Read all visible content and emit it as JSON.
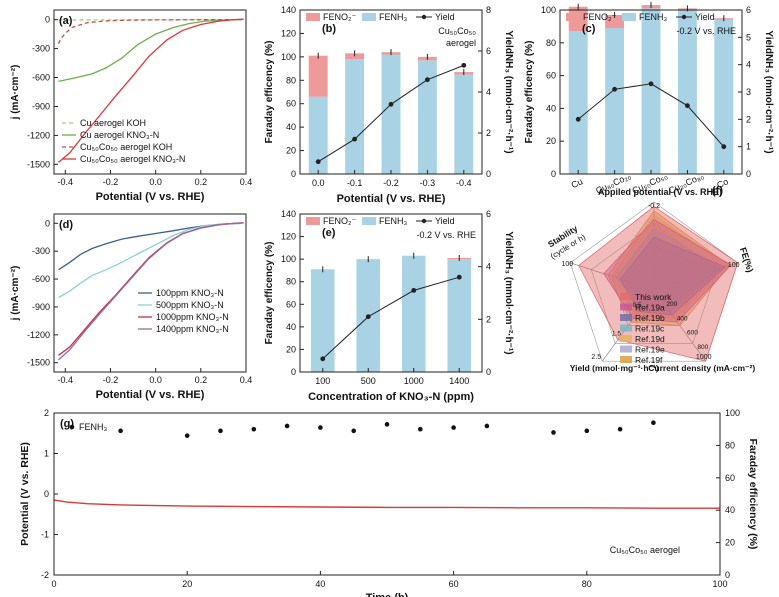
{
  "chart_data": [
    {
      "panel": "(a)",
      "type": "line",
      "xlabel": "Potential (V vs. RHE)",
      "ylabel": "j (mA·cm⁻²)",
      "xlim": [
        -0.45,
        0.4
      ],
      "ylim": [
        -1600,
        100
      ],
      "xticks": [
        -0.4,
        -0.2,
        0.0,
        0.2,
        0.4
      ],
      "xtick_labels": [
        "-0.4",
        "-0.2",
        "0.0",
        "0.2",
        "0.4"
      ],
      "yticks": [
        0,
        -300,
        -600,
        -900,
        -1200,
        -1500
      ],
      "ytick_labels": [
        "0",
        "-300",
        "-600",
        "-900",
        "-1200",
        "-1500"
      ],
      "series": [
        {
          "name": "Cu aerogel KOH",
          "color": "#a6cf7a",
          "dash": true,
          "x": [
            -0.43,
            -0.38,
            -0.3,
            -0.2,
            -0.1,
            0.0,
            0.1,
            0.2,
            0.3,
            0.38
          ],
          "y": [
            -5,
            -4,
            -3,
            -3,
            -2,
            -2,
            -1,
            -1,
            0,
            0
          ]
        },
        {
          "name": "Cu aerogel KNO₃-N",
          "color": "#6fad4e",
          "dash": false,
          "x": [
            -0.43,
            -0.35,
            -0.28,
            -0.22,
            -0.15,
            -0.08,
            0.0,
            0.08,
            0.15,
            0.22,
            0.3,
            0.38
          ],
          "y": [
            -640,
            -600,
            -560,
            -500,
            -400,
            -260,
            -150,
            -80,
            -40,
            -15,
            -5,
            0
          ]
        },
        {
          "name": "Cu₅₀Co₅₀ aerogel KOH",
          "color": "#c0504d",
          "dash": true,
          "x": [
            -0.43,
            -0.42,
            -0.4,
            -0.37,
            -0.3,
            -0.2,
            -0.1,
            0.0,
            0.1,
            0.2,
            0.3,
            0.38
          ],
          "y": [
            -250,
            -200,
            -140,
            -80,
            -30,
            -10,
            -5,
            -3,
            -2,
            -1,
            0,
            0
          ]
        },
        {
          "name": "Cu₅₀Co₅₀ aerogel KNO₃-N",
          "color": "#d9383a",
          "dash": false,
          "x": [
            -0.43,
            -0.38,
            -0.32,
            -0.25,
            -0.18,
            -0.1,
            -0.03,
            0.05,
            0.12,
            0.2,
            0.28,
            0.35,
            0.39
          ],
          "y": [
            -1480,
            -1380,
            -1200,
            -1000,
            -800,
            -580,
            -380,
            -210,
            -110,
            -50,
            -15,
            0,
            5
          ]
        }
      ]
    },
    {
      "panel": "(b)",
      "type": "bar+line",
      "xlabel": "Potential (V vs. RHE)",
      "ylabel": "Faraday efficency (%)",
      "y2label": "YieldNH₃ (mmol·cm⁻²·h⁻¹)",
      "categories": [
        "0.0",
        "-0.1",
        "-0.2",
        "-0.3",
        "-0.4"
      ],
      "ylim": [
        0,
        140
      ],
      "yticks": [
        0,
        20,
        40,
        60,
        80,
        100,
        120,
        140
      ],
      "y2lim": [
        0,
        8
      ],
      "y2ticks": [
        0,
        2,
        4,
        6,
        8
      ],
      "legend": [
        "FENO₂⁻",
        "FENH₃",
        "Yield"
      ],
      "annotation": [
        "Cu₅₀Co₅₀",
        "aerogel"
      ],
      "series": [
        {
          "name": "FENH₃",
          "color": "#a9d3e4",
          "values": [
            66,
            98,
            102,
            97,
            85
          ]
        },
        {
          "name": "FENO₂⁻",
          "color": "#ef9a9a",
          "values": [
            35,
            5,
            2,
            3,
            2
          ]
        },
        {
          "name": "Yield",
          "color": "#222222",
          "axis": "right",
          "values": [
            0.6,
            1.7,
            3.4,
            4.6,
            5.3
          ]
        }
      ]
    },
    {
      "panel": "(c)",
      "type": "bar+line",
      "xlabel": "",
      "ylabel": "Faraday efficency (%)",
      "y2label": "YieldNH₃ (mmol·cm⁻²·h⁻¹)",
      "categories": [
        "Cu",
        "Cu₈₀Co₂₀",
        "Cu₅₀Co₅₀",
        "Cu₂₀Co₈₀",
        "Co"
      ],
      "ylim": [
        0,
        100
      ],
      "yticks": [
        0,
        20,
        40,
        60,
        80,
        100
      ],
      "y2lim": [
        0,
        6
      ],
      "y2ticks": [
        0,
        1,
        2,
        3,
        4,
        5,
        6
      ],
      "legend": [
        "FENO₂⁻",
        "FENH₃",
        "Yield"
      ],
      "annotation": [
        "-0.2 V vs. RHE"
      ],
      "series": [
        {
          "name": "FENH₃",
          "color": "#a9d3e4",
          "values": [
            87,
            89,
            101,
            100,
            94
          ]
        },
        {
          "name": "FENO₂⁻",
          "color": "#ef9a9a",
          "values": [
            15,
            8,
            2,
            1,
            1
          ]
        },
        {
          "name": "Yield",
          "color": "#222222",
          "axis": "right",
          "values": [
            2.0,
            3.1,
            3.3,
            2.5,
            1.0
          ]
        }
      ]
    },
    {
      "panel": "(d)",
      "type": "line",
      "xlabel": "Potential (V vs. RHE)",
      "ylabel": "j (mA·cm⁻²)",
      "xlim": [
        -0.45,
        0.4
      ],
      "ylim": [
        -1600,
        100
      ],
      "xticks": [
        -0.4,
        -0.2,
        0.0,
        0.2,
        0.4
      ],
      "xtick_labels": [
        "-0.4",
        "-0.2",
        "0.0",
        "0.2",
        "0.4"
      ],
      "yticks": [
        0,
        -300,
        -600,
        -900,
        -1200,
        -1500
      ],
      "ytick_labels": [
        "0",
        "-300",
        "-600",
        "-900",
        "-1200",
        "-1500"
      ],
      "series": [
        {
          "name": "100ppm KNO₃-N",
          "color": "#3f5f8f",
          "dash": false,
          "x": [
            -0.43,
            -0.38,
            -0.33,
            -0.28,
            -0.22,
            -0.15,
            -0.08,
            0.0,
            0.08,
            0.15,
            0.22,
            0.3,
            0.38
          ],
          "y": [
            -500,
            -420,
            -330,
            -270,
            -220,
            -170,
            -140,
            -110,
            -80,
            -50,
            -25,
            -8,
            0
          ]
        },
        {
          "name": "500ppm KNO₃-N",
          "color": "#8fcfd2",
          "dash": false,
          "x": [
            -0.43,
            -0.38,
            -0.33,
            -0.28,
            -0.22,
            -0.15,
            -0.08,
            0.0,
            0.08,
            0.15,
            0.22,
            0.3,
            0.38
          ],
          "y": [
            -800,
            -730,
            -640,
            -560,
            -500,
            -420,
            -330,
            -230,
            -130,
            -65,
            -25,
            -8,
            0
          ]
        },
        {
          "name": "1000ppm KNO₃-N",
          "color": "#c0304a",
          "dash": false,
          "x": [
            -0.43,
            -0.38,
            -0.32,
            -0.25,
            -0.18,
            -0.1,
            -0.03,
            0.05,
            0.12,
            0.2,
            0.28,
            0.35,
            0.39
          ],
          "y": [
            -1420,
            -1330,
            -1160,
            -960,
            -780,
            -560,
            -370,
            -210,
            -110,
            -50,
            -15,
            0,
            5
          ]
        },
        {
          "name": "1400ppm KNO₃-N",
          "color": "#9b6b9e",
          "dash": false,
          "x": [
            -0.43,
            -0.38,
            -0.32,
            -0.25,
            -0.18,
            -0.1,
            -0.03,
            0.05,
            0.12,
            0.2,
            0.28,
            0.35,
            0.39
          ],
          "y": [
            -1470,
            -1360,
            -1180,
            -980,
            -790,
            -570,
            -380,
            -215,
            -112,
            -52,
            -16,
            0,
            5
          ]
        }
      ]
    },
    {
      "panel": "(e)",
      "type": "bar+line",
      "xlabel": "Concentration of KNO₃-N (ppm)",
      "ylabel": "Faraday efficency (%)",
      "y2label": "YieldNH₃ (mmol·cm⁻²·h⁻¹)",
      "categories": [
        "100",
        "500",
        "1000",
        "1400"
      ],
      "ylim": [
        0,
        140
      ],
      "yticks": [
        0,
        20,
        40,
        60,
        80,
        100,
        120,
        140
      ],
      "y2lim": [
        0,
        6
      ],
      "y2ticks": [
        0,
        2,
        4,
        6
      ],
      "legend": [
        "FENO₂⁻",
        "FENH₃",
        "Yield"
      ],
      "annotation": [
        "-0.2 V vs. RHE"
      ],
      "series": [
        {
          "name": "FENH₃",
          "color": "#a9d3e4",
          "values": [
            91,
            100,
            103,
            100
          ]
        },
        {
          "name": "FENO₂⁻",
          "color": "#ef9a9a",
          "values": [
            0,
            0,
            0,
            1
          ]
        },
        {
          "name": "Yield",
          "color": "#222222",
          "axis": "right",
          "values": [
            0.5,
            2.1,
            3.1,
            3.6
          ]
        }
      ]
    },
    {
      "panel": "(f)",
      "type": "radar",
      "axes": [
        {
          "label": "Appiled potential (V vs. RHE)",
          "max_label": "-0.2"
        },
        {
          "label": "FE (%)",
          "max_label": "100",
          "label_short": "FE(%)"
        },
        {
          "label": "Current density (mA·cm⁻²)",
          "max_label": "1000",
          "ticks": [
            "200",
            "400",
            "600",
            "800"
          ]
        },
        {
          "label": "Yield (mmol·mg⁻¹·h⁻¹)",
          "max_label": "2.5",
          "ticks": [
            "0.5",
            "1.5",
            "2.5"
          ]
        },
        {
          "label": "Stability (cycle or h)",
          "max_label": "100"
        }
      ],
      "legend": [
        "This work",
        "Ref.19a",
        "Ref.19b",
        "Ref.19c",
        "Ref.19d",
        "Ref.19e",
        "Ref.19f"
      ],
      "series": [
        {
          "name": "This work",
          "color": "#e46b6b",
          "values": [
            0.95,
            1.0,
            1.0,
            0.7,
            0.9
          ]
        },
        {
          "name": "Ref.19a",
          "color": "#c2569b",
          "values": [
            0.8,
            0.92,
            0.45,
            0.4,
            0.6
          ]
        },
        {
          "name": "Ref.19b",
          "color": "#6a6aa8",
          "values": [
            0.6,
            0.85,
            0.35,
            0.3,
            0.4
          ]
        },
        {
          "name": "Ref.19c",
          "color": "#6fb8c8",
          "values": [
            0.7,
            0.8,
            0.3,
            0.25,
            0.45
          ]
        },
        {
          "name": "Ref.19d",
          "color": "#e2b15a",
          "values": [
            0.85,
            0.88,
            0.4,
            0.35,
            0.5
          ]
        },
        {
          "name": "Ref.19e",
          "color": "#a4a4c4",
          "values": [
            0.5,
            0.75,
            0.25,
            0.2,
            0.35
          ]
        },
        {
          "name": "Ref.19f",
          "color": "#d79a3a",
          "values": [
            0.9,
            0.9,
            0.5,
            0.45,
            0.55
          ]
        }
      ]
    },
    {
      "panel": "(g)",
      "type": "line+scatter",
      "xlabel": "Time (h)",
      "ylabel": "Potential (V vs. RHE)",
      "y2label": "Faraday efficiency (%)",
      "xlim": [
        0,
        100
      ],
      "xticks": [
        0,
        20,
        40,
        60,
        80,
        100
      ],
      "ylim": [
        -2,
        2
      ],
      "yticks": [
        -2,
        -1,
        0,
        1,
        2
      ],
      "y2lim": [
        0,
        100
      ],
      "y2ticks": [
        0,
        20,
        40,
        60,
        80,
        100
      ],
      "legend": [
        "FENH₃"
      ],
      "annotation": [
        "Cu₅₀Co₅₀ aerogel"
      ],
      "series": [
        {
          "name": "Potential",
          "color": "#d9383a",
          "x": [
            0,
            2,
            5,
            10,
            20,
            30,
            40,
            50,
            60,
            70,
            80,
            90,
            100
          ],
          "y": [
            -0.15,
            -0.2,
            -0.24,
            -0.27,
            -0.3,
            -0.31,
            -0.32,
            -0.33,
            -0.33,
            -0.34,
            -0.34,
            -0.35,
            -0.35
          ]
        },
        {
          "name": "FENH₃",
          "color": "#111111",
          "axis": "right",
          "x": [
            10,
            20,
            25,
            30,
            35,
            40,
            45,
            50,
            55,
            60,
            65,
            75,
            80,
            85,
            90
          ],
          "y": [
            89,
            86,
            89,
            90,
            92,
            91,
            89,
            93,
            90,
            91,
            92,
            88,
            89,
            90,
            94
          ]
        }
      ]
    }
  ]
}
